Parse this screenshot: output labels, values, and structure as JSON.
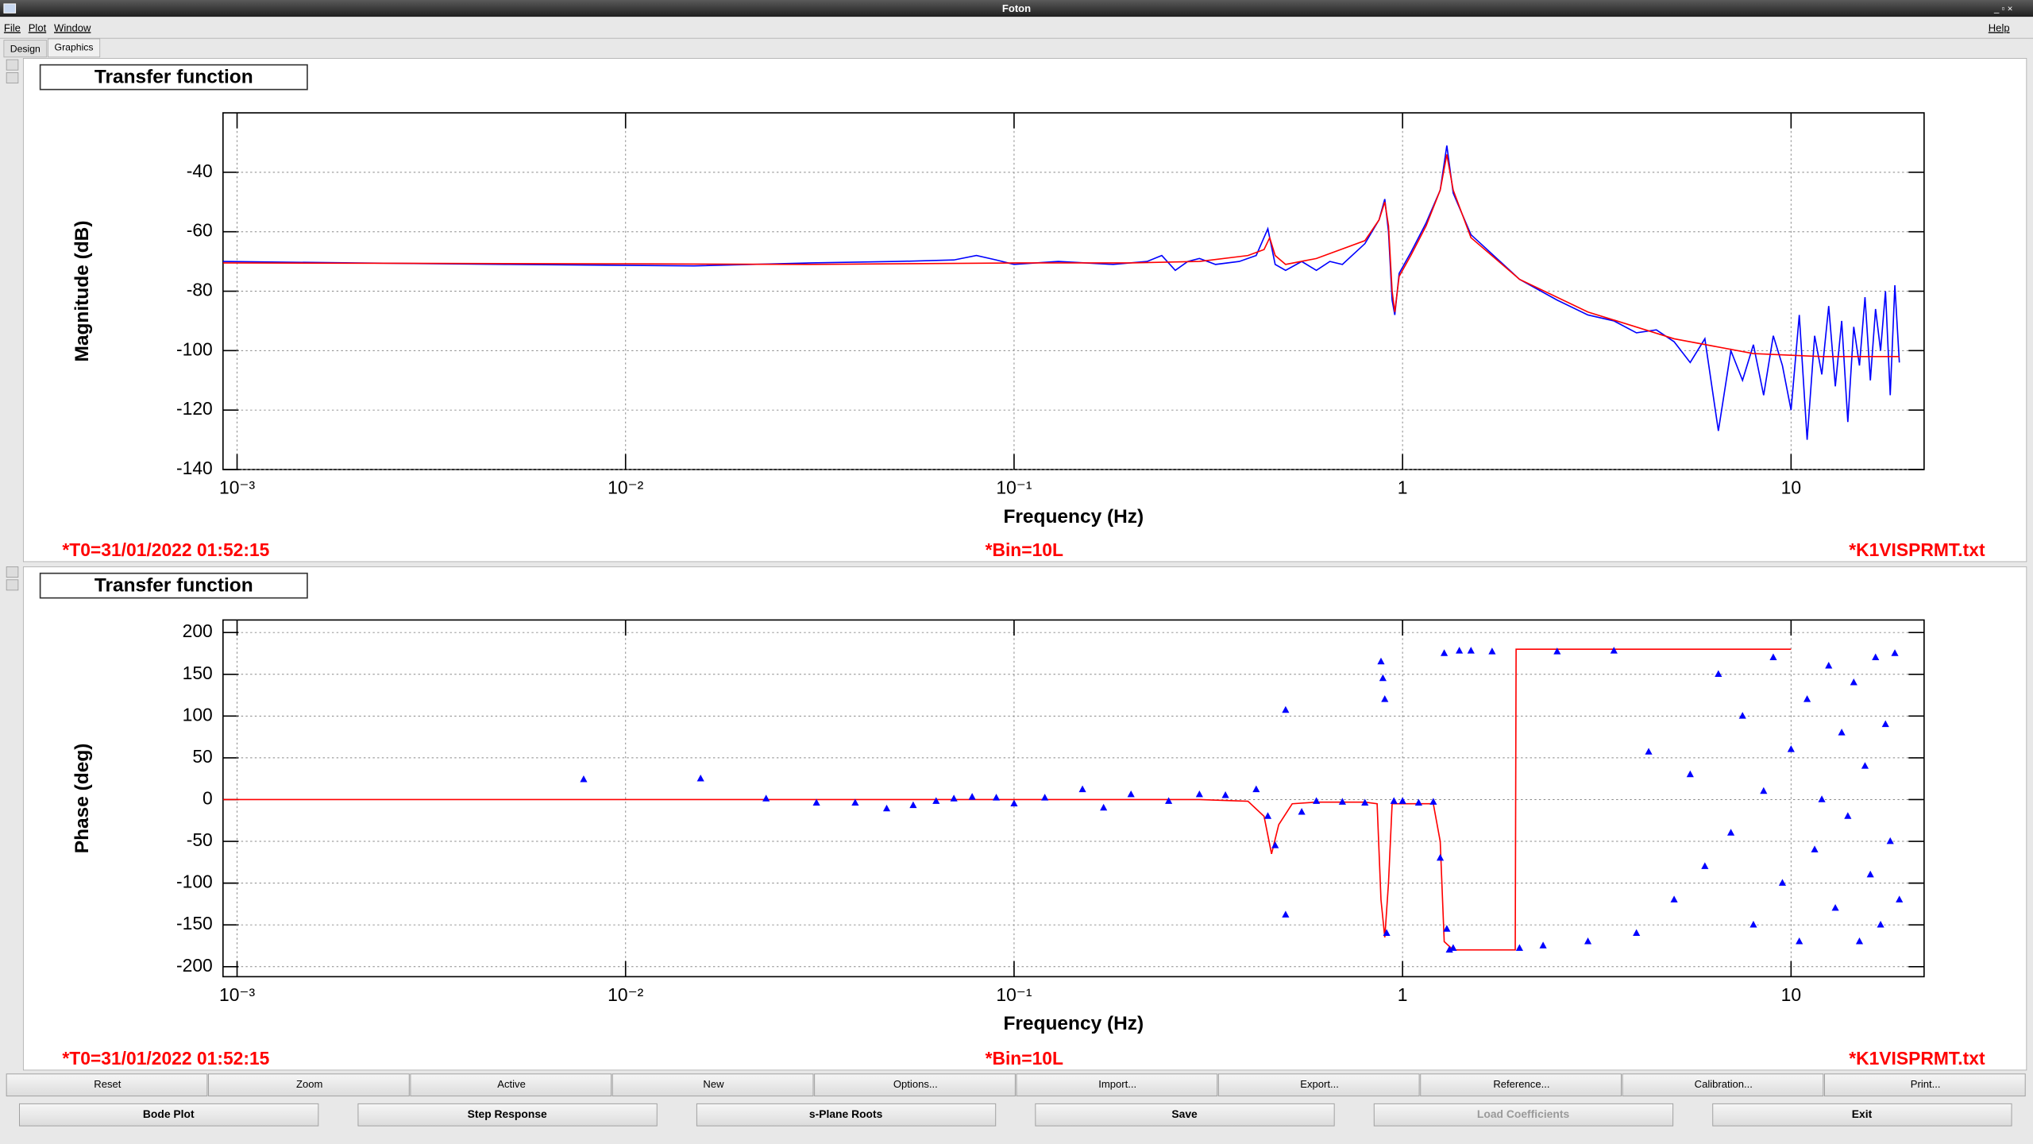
{
  "window": {
    "title": "Foton"
  },
  "menu": [
    "File",
    "Plot",
    "Window"
  ],
  "help": "Help",
  "tabs": [
    "Design",
    "Graphics"
  ],
  "chart_data": [
    {
      "type": "line",
      "title": "Transfer function",
      "xlabel": "Frequency (Hz)",
      "ylabel": "Magnitude (dB)",
      "xscale": "log",
      "grid": true,
      "xlim": [
        0.00092,
        22
      ],
      "ylim": [
        -140,
        -20
      ],
      "xticks": [
        {
          "value": 0.001,
          "label": "10⁻³"
        },
        {
          "value": 0.01,
          "label": "10⁻²"
        },
        {
          "value": 0.1,
          "label": "10⁻¹"
        },
        1,
        10
      ],
      "yticks": [
        -140,
        -120,
        -100,
        -80,
        -60,
        -40
      ],
      "annotations": [
        "*T0=31/01/2022 01:52:15",
        "*Bin=10L",
        "*K1VISPRMT.txt"
      ],
      "series": [
        {
          "color": "#0000ff",
          "style": "line",
          "x": [
            0.00092,
            0.002,
            0.005,
            0.015,
            0.03,
            0.05,
            0.07,
            0.08,
            0.09,
            0.1,
            0.13,
            0.18,
            0.22,
            0.24,
            0.26,
            0.28,
            0.3,
            0.33,
            0.38,
            0.42,
            0.45,
            0.47,
            0.5,
            0.55,
            0.6,
            0.65,
            0.7,
            0.8,
            0.87,
            0.9,
            0.92,
            0.94,
            0.955,
            0.98,
            1.05,
            1.15,
            1.25,
            1.3,
            1.35,
            1.5,
            2,
            2.5,
            3,
            3.5,
            4,
            4.5,
            5,
            5.5,
            6,
            6.5,
            7,
            7.5,
            8,
            8.5,
            9,
            9.5,
            10,
            10.5,
            11,
            11.5,
            12,
            12.5,
            13,
            13.5,
            14,
            14.5,
            15,
            15.5,
            16,
            16.5,
            17,
            17.5,
            18,
            18.5,
            19
          ],
          "values": [
            -70,
            -70.5,
            -71,
            -71.5,
            -70.5,
            -70,
            -69.5,
            -68,
            -69.5,
            -71,
            -70,
            -71,
            -70,
            -68,
            -73,
            -70,
            -69,
            -71,
            -70,
            -68,
            -59,
            -71,
            -73,
            -70,
            -73,
            -70,
            -71,
            -64,
            -56,
            -49,
            -60,
            -83,
            -88,
            -74,
            -67,
            -57,
            -46,
            -31,
            -47,
            -61,
            -76,
            -83,
            -88,
            -90,
            -94,
            -93,
            -97,
            -104,
            -96,
            -127,
            -100,
            -110,
            -98,
            -115,
            -95,
            -105,
            -120,
            -88,
            -130,
            -95,
            -108,
            -85,
            -112,
            -90,
            -124,
            -92,
            -105,
            -82,
            -110,
            -86,
            -100,
            -80,
            -115,
            -78,
            -104
          ]
        },
        {
          "color": "#ff0000",
          "style": "line",
          "x": [
            0.00092,
            0.01,
            0.03,
            0.1,
            0.2,
            0.3,
            0.4,
            0.44,
            0.455,
            0.47,
            0.5,
            0.6,
            0.8,
            0.87,
            0.9,
            0.92,
            0.94,
            0.955,
            0.98,
            1.05,
            1.15,
            1.25,
            1.3,
            1.35,
            1.5,
            2,
            3,
            5,
            8,
            12,
            19
          ],
          "values": [
            -70.5,
            -70.8,
            -71,
            -70.5,
            -70.5,
            -70,
            -68,
            -66,
            -62,
            -68,
            -71,
            -69,
            -63,
            -56,
            -50,
            -58,
            -80,
            -87,
            -75,
            -68,
            -58,
            -46,
            -34,
            -46,
            -62,
            -76,
            -87,
            -96,
            -101,
            -102,
            -102
          ]
        }
      ]
    },
    {
      "type": "scatter",
      "title": "Transfer function",
      "xlabel": "Frequency (Hz)",
      "ylabel": "Phase (deg)",
      "xscale": "log",
      "grid": true,
      "xlim": [
        0.00092,
        22
      ],
      "ylim": [
        -212,
        215
      ],
      "xticks": [
        {
          "value": 0.001,
          "label": "10⁻³"
        },
        {
          "value": 0.01,
          "label": "10⁻²"
        },
        {
          "value": 0.1,
          "label": "10⁻¹"
        },
        1,
        10
      ],
      "yticks": [
        -200,
        -150,
        -100,
        -50,
        0,
        50,
        100,
        150,
        200
      ],
      "annotations": [
        "*T0=31/01/2022 01:52:15",
        "*Bin=10L",
        "*K1VISPRMT.txt"
      ],
      "series": [
        {
          "color": "#ff0000",
          "style": "line",
          "x": [
            0.00092,
            0.3,
            0.4,
            0.44,
            0.46,
            0.48,
            0.52,
            0.6,
            0.8,
            0.86,
            0.88,
            0.9,
            0.92,
            0.94,
            1.2,
            1.25,
            1.28,
            1.35,
            1.95,
            1.96,
            10
          ],
          "values": [
            0,
            0,
            -2,
            -20,
            -65,
            -30,
            -5,
            -3,
            -3,
            -5,
            -120,
            -165,
            -100,
            -5,
            -5,
            -50,
            -170,
            -180,
            -180,
            180,
            180
          ]
        },
        {
          "color": "#0000ff",
          "style": "triangle",
          "x": [
            0.0078,
            0.0156,
            0.023,
            0.031,
            0.039,
            0.047,
            0.055,
            0.063,
            0.07,
            0.078,
            0.09,
            0.1,
            0.12,
            0.15,
            0.17,
            0.2,
            0.25,
            0.3,
            0.35,
            0.42,
            0.45,
            0.47,
            0.5,
            0.5,
            0.55,
            0.6,
            0.7,
            0.8,
            0.88,
            0.89,
            0.9,
            0.91,
            0.95,
            1.0,
            1.1,
            1.2,
            1.25,
            1.28,
            1.3,
            1.32,
            1.35,
            1.4,
            1.5,
            1.7,
            2,
            2.3,
            2.5,
            3,
            3.5,
            4,
            4.3,
            5,
            5.5,
            6,
            6.5,
            7,
            7.5,
            8,
            8.5,
            9,
            9.5,
            10,
            10.5,
            11,
            11.5,
            12,
            12.5,
            13,
            13.5,
            14,
            14.5,
            15,
            15.5,
            16,
            16.5,
            17,
            17.5,
            18,
            18.5,
            19
          ],
          "values": [
            24,
            25,
            1,
            -4,
            -4,
            -11,
            -7,
            -2,
            1,
            3,
            2,
            -5,
            2,
            12,
            -10,
            6,
            -2,
            6,
            5,
            12,
            -20,
            -55,
            107,
            -138,
            -15,
            -2,
            -3,
            -4,
            165,
            145,
            120,
            -160,
            -2,
            -2,
            -4,
            -3,
            -70,
            175,
            -155,
            -180,
            -178,
            178,
            178,
            177,
            -178,
            -175,
            177,
            -170,
            178,
            -160,
            57,
            -120,
            30,
            -80,
            150,
            -40,
            100,
            -150,
            10,
            170,
            -100,
            60,
            -170,
            120,
            -60,
            0,
            160,
            -130,
            80,
            -20,
            140,
            -170,
            40,
            -90,
            170,
            -150,
            90,
            -50,
            175,
            -120
          ]
        }
      ]
    }
  ],
  "buttons_row1": [
    "Reset",
    "Zoom",
    "Active",
    "New",
    "Options...",
    "Import...",
    "Export...",
    "Reference...",
    "Calibration...",
    "Print..."
  ],
  "buttons_row2": [
    {
      "label": "Bode Plot",
      "enabled": true
    },
    {
      "label": "Step Response",
      "enabled": true
    },
    {
      "label": "s-Plane Roots",
      "enabled": true
    },
    {
      "label": "Save",
      "enabled": true
    },
    {
      "label": "Load Coefficients",
      "enabled": false
    },
    {
      "label": "Exit",
      "enabled": true
    }
  ]
}
